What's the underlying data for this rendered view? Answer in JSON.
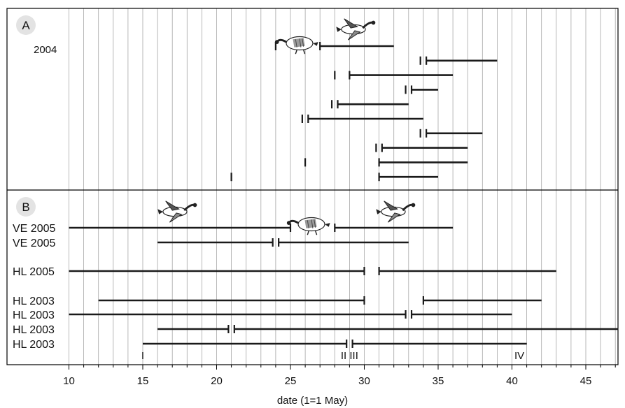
{
  "chart_data": {
    "type": "timeline",
    "xlabel": "date (1=1 May)",
    "xlim": [
      10,
      47.2
    ],
    "xticks": [
      10,
      15,
      20,
      25,
      30,
      35,
      40,
      45
    ],
    "grid": "vertical lines at every integer day",
    "colors": {
      "line": "#1a1a1a",
      "grid": "#a6a6a6",
      "badge": "#e3e3e3"
    },
    "icons": [
      "goose-flying-icon",
      "goose-feeding-icon"
    ],
    "panels": [
      {
        "letter": "A",
        "year_label": "2004",
        "rows": [
          {
            "label": "",
            "segments": [
              [
                27,
                32
              ]
            ],
            "ticks": [
              24,
              27
            ]
          },
          {
            "label": "",
            "segments": [
              [
                34.2,
                39
              ]
            ],
            "ticks": [
              33.8,
              34.2
            ]
          },
          {
            "label": "",
            "segments": [
              [
                29,
                36
              ]
            ],
            "ticks": [
              28,
              29
            ]
          },
          {
            "label": "",
            "segments": [
              [
                33.2,
                35
              ]
            ],
            "ticks": [
              32.8,
              33.2
            ]
          },
          {
            "label": "",
            "segments": [
              [
                28.2,
                33
              ]
            ],
            "ticks": [
              27.8,
              28.2
            ]
          },
          {
            "label": "",
            "segments": [
              [
                26.2,
                34
              ]
            ],
            "ticks": [
              25.8,
              26.2
            ]
          },
          {
            "label": "",
            "segments": [
              [
                34.2,
                38
              ]
            ],
            "ticks": [
              33.8,
              34.2
            ]
          },
          {
            "label": "",
            "segments": [
              [
                31.2,
                37
              ]
            ],
            "ticks": [
              30.8,
              31.2
            ]
          },
          {
            "label": "",
            "segments": [
              [
                31,
                37
              ]
            ],
            "ticks": [
              26,
              31
            ]
          },
          {
            "label": "",
            "segments": [
              [
                31,
                35
              ]
            ],
            "ticks": [
              21,
              31
            ]
          }
        ]
      },
      {
        "letter": "B",
        "year_label": "",
        "rows": [
          {
            "label": "VE 2005",
            "segments": [
              [
                10,
                25
              ],
              [
                28,
                36
              ]
            ],
            "ticks": [
              25,
              28
            ]
          },
          {
            "label": "VE 2005",
            "segments": [
              [
                16,
                23.8
              ],
              [
                24.2,
                33
              ]
            ],
            "ticks": [
              23.8,
              24.2
            ]
          },
          {
            "label": "HL 2005",
            "segments": [
              [
                10,
                30
              ],
              [
                31,
                43
              ]
            ],
            "ticks": [
              30,
              31
            ]
          },
          {
            "label": "HL 2003",
            "segments": [
              [
                12,
                30
              ],
              [
                34,
                42
              ]
            ],
            "ticks": [
              30,
              34
            ]
          },
          {
            "label": "HL 2003",
            "segments": [
              [
                10,
                32.8
              ],
              [
                33.2,
                40
              ]
            ],
            "ticks": [
              32.8,
              33.2
            ]
          },
          {
            "label": "HL 2003",
            "segments": [
              [
                16,
                20.8
              ],
              [
                21.2,
                47.2
              ]
            ],
            "ticks": [
              20.8,
              21.2
            ]
          },
          {
            "label": "HL 2003",
            "segments": [
              [
                15,
                28.8
              ],
              [
                29.2,
                41
              ]
            ],
            "ticks": [
              28.8,
              29.2
            ]
          }
        ],
        "stage_markers": [
          {
            "label": "I",
            "x": 15
          },
          {
            "label": "II III",
            "x": 29
          },
          {
            "label": "IV",
            "x": 40.5
          }
        ]
      }
    ]
  }
}
